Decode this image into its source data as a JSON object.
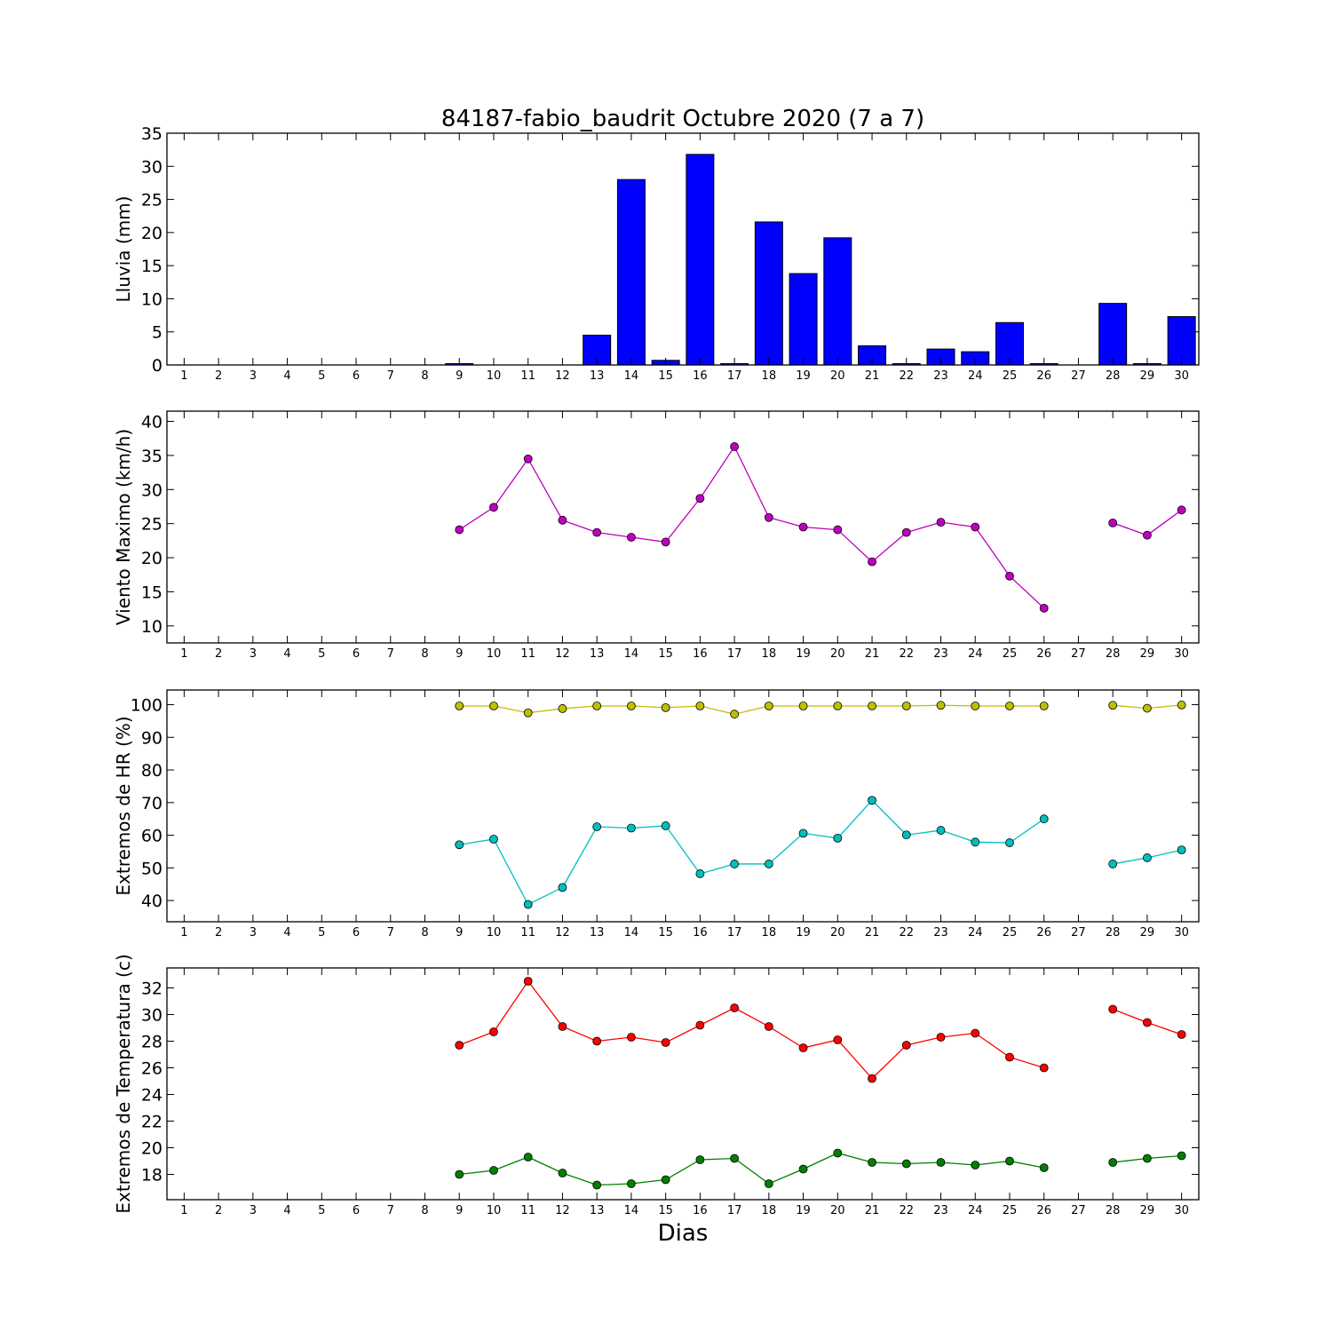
{
  "figure": {
    "title": "84187-fabio_baudrit Octubre 2020  (7 a 7)",
    "xlabel": "Dias"
  },
  "chart_data": [
    {
      "type": "bar",
      "ylabel": "Lluvia (mm)",
      "ylim": [
        0,
        35
      ],
      "yticks": [
        0,
        5,
        10,
        15,
        20,
        25,
        30,
        35
      ],
      "categories": [
        "1",
        "2",
        "3",
        "4",
        "5",
        "6",
        "7",
        "8",
        "9",
        "10",
        "11",
        "12",
        "13",
        "14",
        "15",
        "16",
        "17",
        "18",
        "19",
        "20",
        "21",
        "22",
        "23",
        "24",
        "25",
        "26",
        "27",
        "28",
        "29",
        "30"
      ],
      "series": [
        {
          "color": "#0000ff",
          "values": [
            0,
            0,
            0,
            0,
            0,
            0,
            0,
            0,
            0.2,
            0,
            0,
            0,
            4.5,
            28.0,
            0.7,
            31.8,
            0.2,
            21.6,
            13.8,
            19.2,
            2.9,
            0.2,
            2.4,
            2.0,
            6.4,
            0.2,
            0,
            9.3,
            0.2,
            7.3
          ]
        }
      ]
    },
    {
      "type": "line",
      "ylabel": "Viento Maximo (km/h)",
      "ylim": [
        7.5,
        41.5
      ],
      "yticks": [
        10,
        15,
        20,
        25,
        30,
        35,
        40
      ],
      "categories": [
        "1",
        "2",
        "3",
        "4",
        "5",
        "6",
        "7",
        "8",
        "9",
        "10",
        "11",
        "12",
        "13",
        "14",
        "15",
        "16",
        "17",
        "18",
        "19",
        "20",
        "21",
        "22",
        "23",
        "24",
        "25",
        "26",
        "27",
        "28",
        "29",
        "30"
      ],
      "series": [
        {
          "color": "#bf00bf",
          "values": [
            null,
            null,
            null,
            null,
            null,
            null,
            null,
            null,
            24.1,
            27.4,
            34.5,
            25.5,
            23.7,
            23.0,
            22.3,
            28.7,
            36.3,
            25.9,
            24.5,
            24.1,
            19.4,
            23.7,
            25.2,
            24.5,
            17.3,
            12.6,
            null,
            25.1,
            23.3,
            27.0
          ]
        }
      ]
    },
    {
      "type": "line",
      "ylabel": "Extremos de HR (%)",
      "ylim": [
        33.5,
        104.5
      ],
      "yticks": [
        40,
        50,
        60,
        70,
        80,
        90,
        100
      ],
      "categories": [
        "1",
        "2",
        "3",
        "4",
        "5",
        "6",
        "7",
        "8",
        "9",
        "10",
        "11",
        "12",
        "13",
        "14",
        "15",
        "16",
        "17",
        "18",
        "19",
        "20",
        "21",
        "22",
        "23",
        "24",
        "25",
        "26",
        "27",
        "28",
        "29",
        "30"
      ],
      "series": [
        {
          "color": "#bfbf00",
          "values": [
            null,
            null,
            null,
            null,
            null,
            null,
            null,
            null,
            99.6,
            99.6,
            97.5,
            98.8,
            99.6,
            99.6,
            99.1,
            99.6,
            97.1,
            99.6,
            99.6,
            99.6,
            99.6,
            99.6,
            99.8,
            99.6,
            99.6,
            99.6,
            null,
            99.8,
            98.9,
            99.9
          ]
        },
        {
          "color": "#00bfbf",
          "values": [
            null,
            null,
            null,
            null,
            null,
            null,
            null,
            null,
            57.1,
            58.8,
            38.8,
            44.0,
            62.6,
            62.2,
            62.9,
            48.2,
            51.2,
            51.2,
            60.6,
            59.1,
            70.7,
            60.1,
            61.5,
            57.9,
            57.7,
            65.0,
            null,
            51.2,
            53.1,
            55.5
          ]
        }
      ]
    },
    {
      "type": "line",
      "ylabel": "Extremos de Temperatura (c)",
      "ylim": [
        16.1,
        33.5
      ],
      "yticks": [
        18,
        20,
        22,
        24,
        26,
        28,
        30,
        32
      ],
      "categories": [
        "1",
        "2",
        "3",
        "4",
        "5",
        "6",
        "7",
        "8",
        "9",
        "10",
        "11",
        "12",
        "13",
        "14",
        "15",
        "16",
        "17",
        "18",
        "19",
        "20",
        "21",
        "22",
        "23",
        "24",
        "25",
        "26",
        "27",
        "28",
        "29",
        "30"
      ],
      "series": [
        {
          "color": "#ff0000",
          "values": [
            null,
            null,
            null,
            null,
            null,
            null,
            null,
            null,
            27.7,
            28.7,
            32.5,
            29.1,
            28.0,
            28.3,
            27.9,
            29.2,
            30.5,
            29.1,
            27.5,
            28.1,
            25.2,
            27.7,
            28.3,
            28.6,
            26.8,
            26.0,
            null,
            30.4,
            29.4,
            28.5
          ]
        },
        {
          "color": "#007f00",
          "values": [
            null,
            null,
            null,
            null,
            null,
            null,
            null,
            null,
            18.0,
            18.3,
            19.3,
            18.1,
            17.2,
            17.3,
            17.6,
            19.1,
            19.2,
            17.3,
            18.4,
            19.6,
            18.9,
            18.8,
            18.9,
            18.7,
            19.0,
            18.5,
            null,
            18.9,
            19.2,
            19.4
          ]
        }
      ]
    }
  ]
}
